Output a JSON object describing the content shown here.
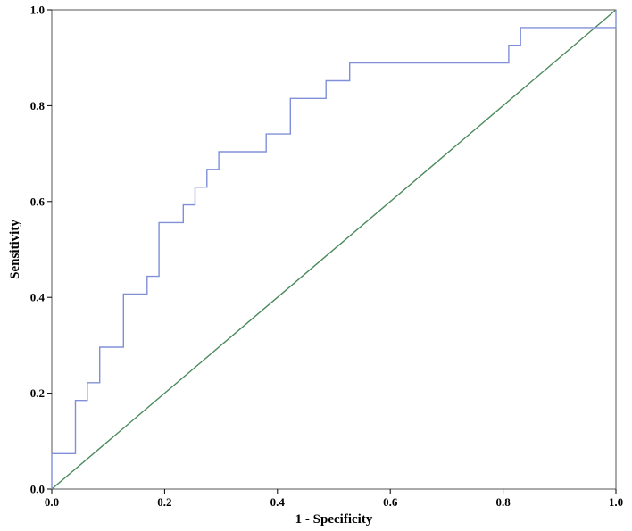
{
  "chart_data": {
    "type": "line",
    "title": "",
    "xlabel": "1 - Specificity",
    "ylabel": "Sensitivity",
    "xlim": [
      0,
      1
    ],
    "ylim": [
      0,
      1
    ],
    "xticks": [
      "0.0",
      "0.2",
      "0.4",
      "0.6",
      "0.8",
      "1.0"
    ],
    "yticks": [
      "0.0",
      "0.2",
      "0.4",
      "0.6",
      "0.8",
      "1.0"
    ],
    "grid": false,
    "colors": {
      "roc": "#8090d8",
      "reference": "#4a8a5a",
      "frame": "#555555"
    },
    "series": [
      {
        "style": "step",
        "x": [
          0.0,
          0.0,
          0.042,
          0.042,
          0.063,
          0.063,
          0.085,
          0.085,
          0.127,
          0.127,
          0.169,
          0.169,
          0.19,
          0.19,
          0.233,
          0.233,
          0.254,
          0.254,
          0.275,
          0.275,
          0.296,
          0.296,
          0.38,
          0.38,
          0.423,
          0.423,
          0.486,
          0.486,
          0.528,
          0.528,
          0.81,
          0.81,
          0.831,
          0.831,
          1.0,
          1.0
        ],
        "y": [
          0.0,
          0.074,
          0.074,
          0.185,
          0.185,
          0.222,
          0.222,
          0.296,
          0.296,
          0.407,
          0.407,
          0.444,
          0.444,
          0.556,
          0.556,
          0.593,
          0.593,
          0.63,
          0.63,
          0.667,
          0.667,
          0.704,
          0.704,
          0.741,
          0.741,
          0.815,
          0.815,
          0.852,
          0.852,
          0.889,
          0.889,
          0.926,
          0.926,
          0.963,
          0.963,
          1.0
        ]
      },
      {
        "style": "reference",
        "x": [
          0,
          1
        ],
        "y": [
          0,
          1
        ]
      }
    ]
  }
}
